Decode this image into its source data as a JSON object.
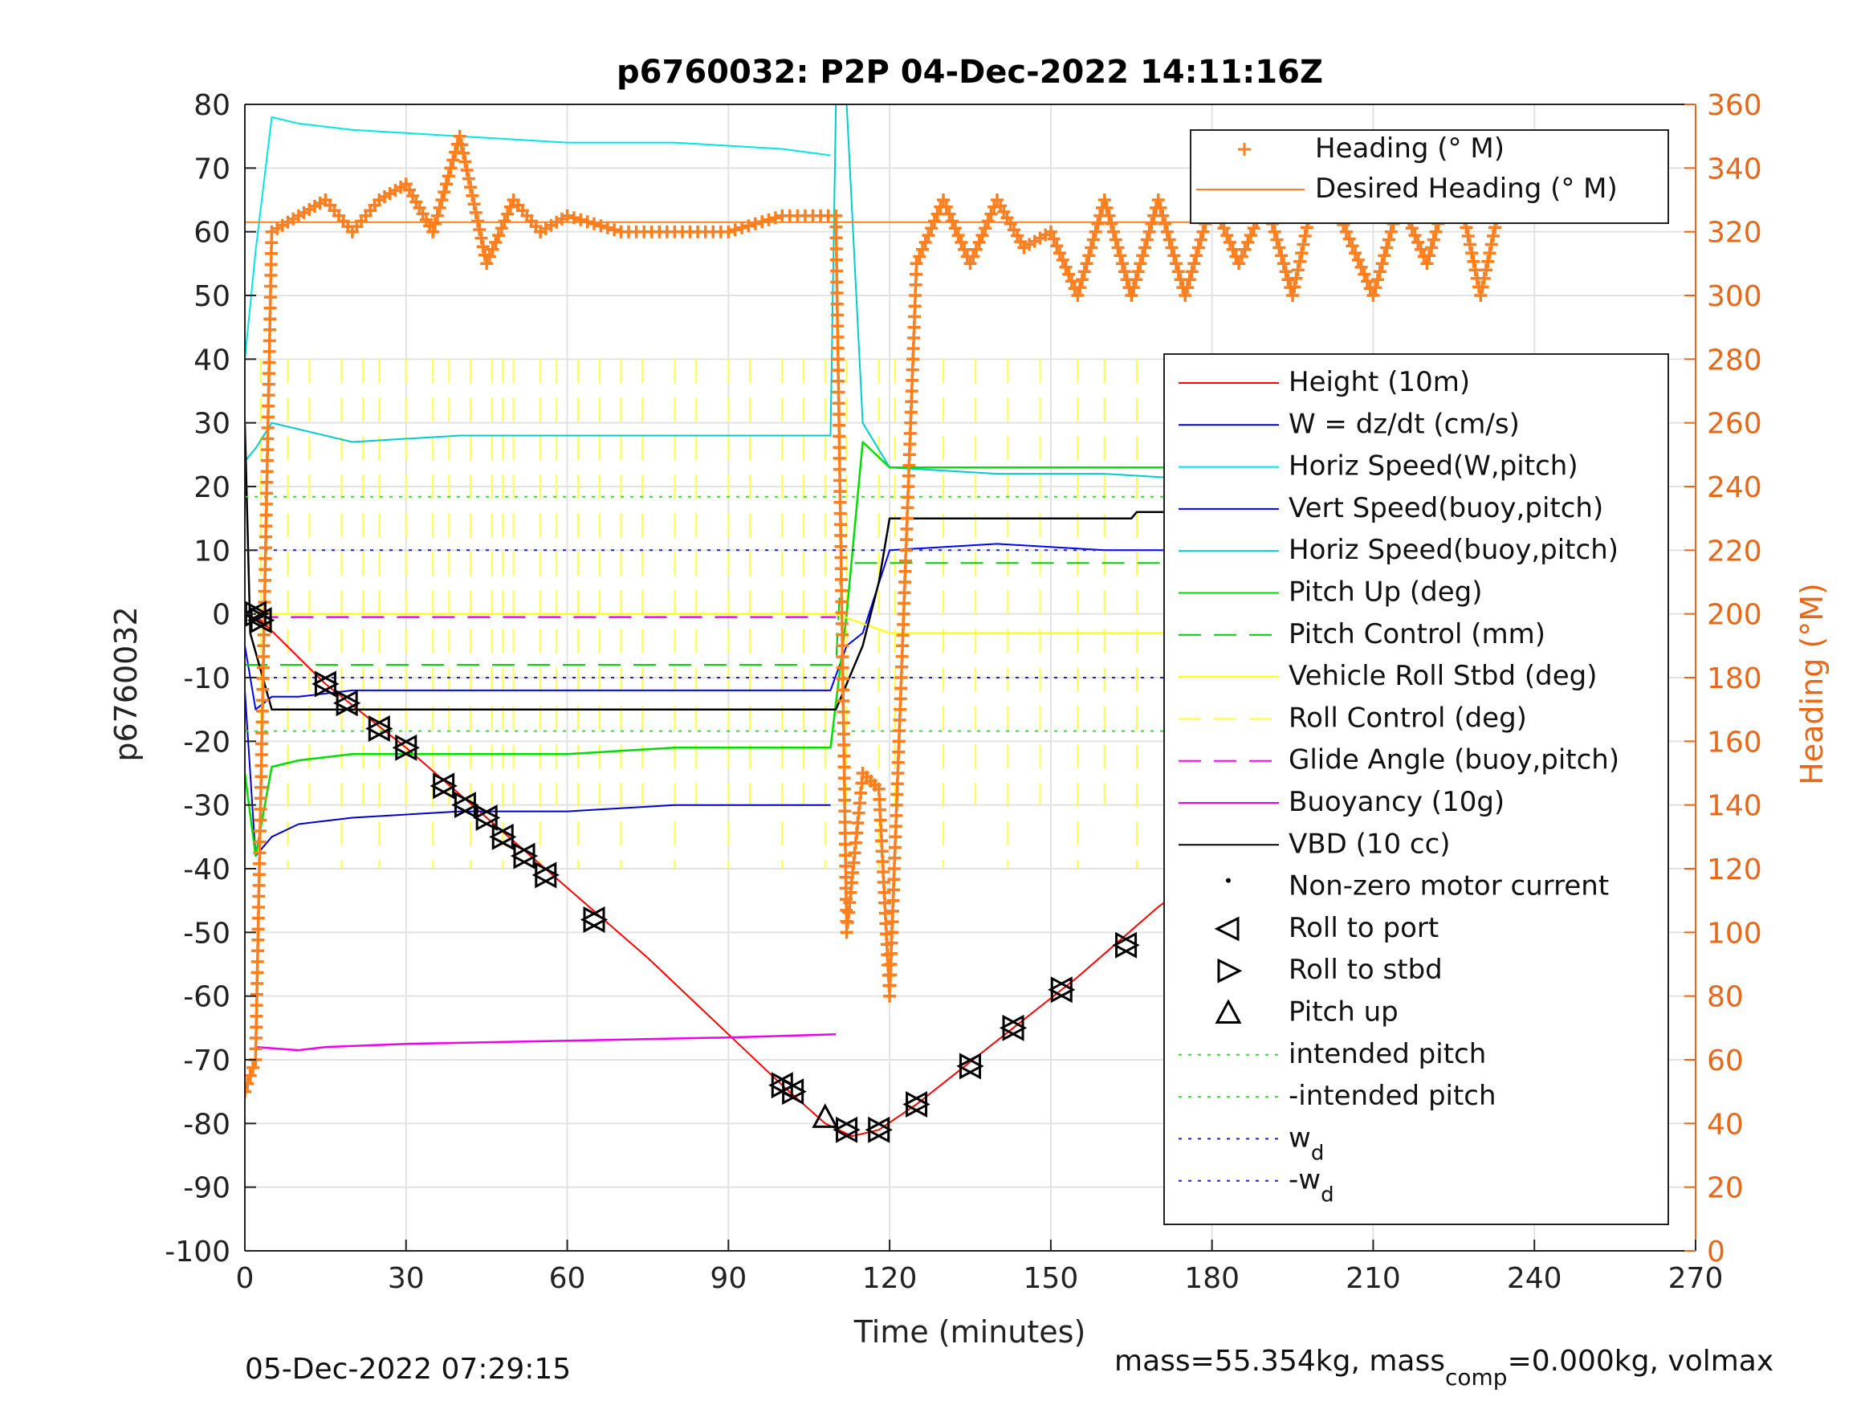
{
  "chart_data": {
    "type": "line",
    "title": "p6760032: P2P 04-Dec-2022 14:11:16Z",
    "xlabel": "Time (minutes)",
    "ylabel": "p6760032",
    "ylabel_right": "Heading (°M)",
    "xlim": [
      0,
      270
    ],
    "ylim": [
      -100,
      80
    ],
    "ylim_right": [
      0,
      360
    ],
    "x_ticks": [
      "0",
      "30",
      "60",
      "90",
      "120",
      "150",
      "180",
      "210",
      "240",
      "270"
    ],
    "y_ticks": [
      "-100",
      "-90",
      "-80",
      "-70",
      "-60",
      "-50",
      "-40",
      "-30",
      "-20",
      "-10",
      "0",
      "10",
      "20",
      "30",
      "40",
      "50",
      "60",
      "70",
      "80"
    ],
    "y_ticks_right": [
      "0",
      "20",
      "40",
      "60",
      "80",
      "100",
      "120",
      "140",
      "160",
      "180",
      "200",
      "220",
      "240",
      "260",
      "280",
      "300",
      "320",
      "340",
      "360"
    ],
    "grid": true,
    "legend_heading": {
      "placement": "top-right",
      "entries": [
        "Heading (° M)",
        "Desired Heading (° M)"
      ]
    },
    "legend_main": {
      "placement": "right",
      "entries": [
        "Height (10m)",
        "W = dz/dt (cm/s)",
        "Horiz Speed(W,pitch)",
        "Vert Speed(buoy,pitch)",
        "Horiz Speed(buoy,pitch)",
        "Pitch Up (deg)",
        "Pitch Control (mm)",
        "Vehicle Roll Stbd (deg)",
        "Roll Control (deg)",
        "Glide Angle (buoy,pitch)",
        "Buoyancy (10g)",
        "VBD (10 cc)",
        "Non-zero motor current",
        "Roll to port",
        "Roll to stbd",
        "Pitch up",
        "intended pitch",
        "-intended pitch",
        "w",
        "-w"
      ],
      "subscripts": {
        "w": "d",
        "-w": "d"
      }
    },
    "colors": {
      "height": "#ff0000",
      "w": "#0000cc",
      "horiz_w": "#00e5e5",
      "vert_buoy": "#0000ff",
      "horiz_buoy": "#00cccc",
      "pitch": "#00dd00",
      "pitch_ctrl": "#00cc00",
      "roll": "#ffff00",
      "roll_ctrl": "#ffff33",
      "glide": "#ff00ff",
      "buoyancy": "#ee00ee",
      "vbd": "#000000",
      "heading": "#ff7f1f",
      "intended": "#33dd33",
      "wd": "#2222cc"
    },
    "series": [
      {
        "name": "Height (10m)",
        "x": [
          0,
          3,
          15,
          30,
          45,
          60,
          75,
          90,
          100,
          108,
          113,
          118,
          125,
          140,
          155,
          170,
          185,
          200,
          215,
          230,
          243
        ],
        "y": [
          0,
          -1,
          -11,
          -21,
          -32,
          -43,
          -54,
          -66,
          -74,
          -80,
          -82,
          -81,
          -77,
          -67,
          -57,
          -46,
          -37,
          -27,
          -17,
          -8,
          -1
        ]
      },
      {
        "name": "W = dz/dt (cm/s)",
        "x": [
          0,
          2,
          5,
          10,
          20,
          40,
          60,
          80,
          100,
          109
        ],
        "y": [
          -12,
          -38,
          -35,
          -33,
          -32,
          -31,
          -31,
          -30,
          -30,
          -30
        ]
      },
      {
        "name": "Horiz Speed(W,pitch)",
        "x": [
          0,
          2,
          5,
          10,
          20,
          40,
          60,
          80,
          100,
          109
        ],
        "y": [
          40,
          57,
          78,
          77,
          76,
          75,
          74,
          74,
          73,
          72
        ]
      },
      {
        "name": "Vert Speed(buoy,pitch)",
        "x": [
          0,
          2,
          5,
          10,
          20,
          40,
          60,
          80,
          100,
          109,
          112,
          115,
          120,
          140,
          160,
          180,
          200,
          220,
          240,
          243
        ],
        "y": [
          -5,
          -15,
          -13,
          -13,
          -12,
          -12,
          -12,
          -12,
          -12,
          -12,
          -5,
          -3,
          10,
          11,
          10,
          10,
          10,
          11,
          13,
          16
        ]
      },
      {
        "name": "Horiz Speed(buoy,pitch)",
        "x": [
          0,
          2,
          5,
          10,
          20,
          40,
          60,
          80,
          100,
          109,
          110,
          112,
          115,
          120,
          140,
          160,
          180,
          200,
          220,
          240,
          243
        ],
        "y": [
          24,
          26,
          30,
          29,
          27,
          28,
          28,
          28,
          28,
          28,
          80,
          80,
          30,
          23,
          22,
          22,
          21,
          20,
          21,
          21,
          28
        ]
      },
      {
        "name": "Pitch Up (deg)",
        "x": [
          0,
          2,
          5,
          10,
          20,
          40,
          60,
          80,
          100,
          109,
          112,
          115,
          120,
          140,
          160,
          180,
          200,
          220,
          240,
          243
        ],
        "y": [
          -25,
          -38,
          -24,
          -23,
          -22,
          -22,
          -22,
          -21,
          -21,
          -21,
          0,
          27,
          23,
          23,
          23,
          23,
          22,
          21,
          22,
          22
        ]
      },
      {
        "name": "Pitch Control (mm)",
        "x": [
          0,
          110,
          111,
          243
        ],
        "y": [
          -8,
          -8,
          8,
          8
        ]
      },
      {
        "name": "Vehicle Roll Stbd (deg)",
        "x": [
          0,
          10,
          30,
          50,
          70,
          90,
          110,
          120,
          140,
          160,
          180,
          200,
          220,
          243
        ],
        "y": [
          0,
          0,
          0,
          0,
          0,
          0,
          0,
          -3,
          -3,
          -3,
          -3,
          -3,
          -3,
          -3
        ]
      },
      {
        "name": "Glide Angle (buoy,pitch)",
        "x": [
          2,
          110
        ],
        "y": [
          -0.5,
          -0.5
        ]
      },
      {
        "name": "Buoyancy (10g)",
        "x": [
          2,
          10,
          15,
          30,
          60,
          90,
          110
        ],
        "y": [
          -68,
          -68.5,
          -68,
          -67.5,
          -67,
          -66.5,
          -66
        ]
      },
      {
        "name": "VBD (10 cc)",
        "x": [
          0,
          1,
          5,
          30,
          60,
          90,
          110,
          115,
          118,
          120,
          140,
          165,
          166,
          185,
          187,
          230,
          231,
          243
        ],
        "y": [
          30,
          -3,
          -15,
          -15,
          -15,
          -15,
          -15,
          -5,
          5,
          15,
          15,
          15,
          16,
          16,
          17,
          17,
          21,
          21
        ]
      },
      {
        "name": "Heading (° M)",
        "x": [
          0,
          2,
          5,
          10,
          15,
          20,
          25,
          30,
          35,
          40,
          45,
          50,
          55,
          60,
          70,
          80,
          90,
          100,
          110,
          112,
          115,
          118,
          120,
          125,
          130,
          135,
          140,
          145,
          150,
          155,
          160,
          165,
          170,
          175,
          180,
          185,
          190,
          195,
          200,
          205,
          210,
          215,
          220,
          225,
          230,
          235,
          240,
          243
        ],
        "y": [
          50,
          60,
          320,
          325,
          330,
          320,
          330,
          335,
          320,
          350,
          310,
          330,
          320,
          325,
          320,
          320,
          320,
          325,
          325,
          100,
          150,
          145,
          80,
          310,
          330,
          310,
          330,
          315,
          320,
          300,
          330,
          300,
          330,
          300,
          330,
          310,
          330,
          300,
          340,
          320,
          300,
          330,
          310,
          340,
          300,
          340,
          330,
          330
        ]
      },
      {
        "name": "Desired Heading (° M)",
        "x": [
          0,
          243
        ],
        "y": [
          323,
          323
        ]
      },
      {
        "name": "intended pitch",
        "x": [
          0,
          243
        ],
        "y": [
          18.4,
          18.4
        ]
      },
      {
        "name": "-intended pitch",
        "x": [
          0,
          243
        ],
        "y": [
          -18.4,
          -18.4
        ]
      },
      {
        "name": "w",
        "x": [
          0,
          243
        ],
        "y": [
          10,
          10
        ]
      },
      {
        "name": "-w",
        "x": [
          0,
          243
        ],
        "y": [
          -10,
          -10
        ]
      }
    ],
    "markers_roll_stbd": [
      [
        2,
        0
      ],
      [
        3,
        -1
      ],
      [
        15,
        -11
      ],
      [
        19,
        -14
      ],
      [
        25,
        -18
      ],
      [
        30,
        -21
      ],
      [
        37,
        -27
      ],
      [
        41,
        -30
      ],
      [
        45,
        -32
      ],
      [
        48,
        -35
      ],
      [
        52,
        -38
      ],
      [
        56,
        -41
      ],
      [
        65,
        -48
      ],
      [
        100,
        -74
      ],
      [
        102,
        -75
      ],
      [
        112,
        -81
      ],
      [
        118,
        -81
      ],
      [
        125,
        -77
      ],
      [
        135,
        -71
      ],
      [
        143,
        -65
      ],
      [
        152,
        -59
      ],
      [
        164,
        -52
      ],
      [
        174,
        -46
      ],
      [
        183,
        -40
      ],
      [
        188,
        -37
      ],
      [
        192,
        -34
      ],
      [
        202,
        -28
      ],
      [
        207,
        -24
      ],
      [
        212,
        -21
      ],
      [
        218,
        -18
      ],
      [
        223,
        -14
      ],
      [
        226,
        -12
      ],
      [
        232,
        -8
      ],
      [
        236,
        -5
      ],
      [
        239,
        -3
      ],
      [
        243,
        -1
      ]
    ],
    "markers_pitch_up": [
      [
        108,
        -79
      ]
    ],
    "footer_left": "05-Dec-2022 07:29:15",
    "footer_right": {
      "a": "mass=55.354kg, mass",
      "sub": "comp",
      "b": "=0.000kg, volmax"
    }
  }
}
